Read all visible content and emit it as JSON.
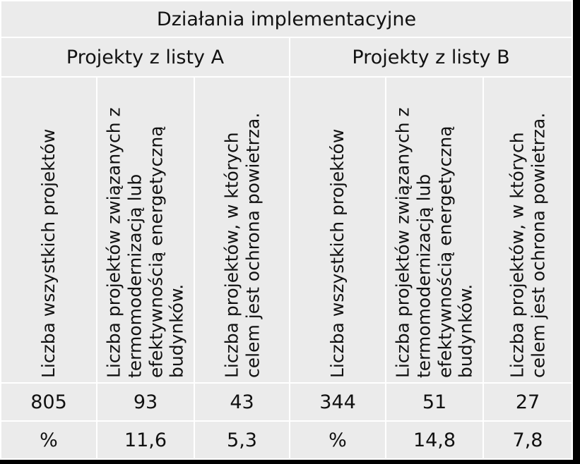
{
  "table": {
    "title": "Działania implementacyjne",
    "groups": [
      "Projekty z listy A",
      "Projekty z listy B"
    ],
    "column_headers": [
      "Liczba wszystkich projektów",
      "Liczba projektów związanych z termomodernizacją lub efektywnością energetyczną budynków.",
      "Liczba projektów, w których celem jest ochrona powietrza.",
      "Liczba wszystkich projektów",
      "Liczba projektów związanych z termomodernizacją lub efektywnością energetyczną budynków.",
      "Liczba projektów, w których celem jest ochrona powietrza."
    ],
    "counts": [
      "805",
      "93",
      "43",
      "344",
      "51",
      "27"
    ],
    "percents": [
      "%",
      "11,6",
      "5,3",
      "%",
      "14,8",
      "7,8"
    ]
  },
  "colors": {
    "cell_background": "#ebebeb",
    "border": "#ffffff",
    "frame": "#000000",
    "text": "#111111"
  }
}
